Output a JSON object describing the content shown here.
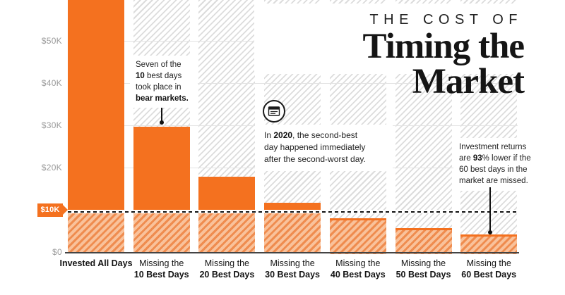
{
  "title": {
    "kicker": "THE COST OF",
    "main": "Timing the Market"
  },
  "chart_data": {
    "type": "bar",
    "title": "The Cost of Timing the Market",
    "categories": [
      [
        "Invested All Days"
      ],
      [
        "Missing the",
        "10 Best Days"
      ],
      [
        "Missing the",
        "20 Best Days"
      ],
      [
        "Missing the",
        "30 Best Days"
      ],
      [
        "Missing the",
        "40 Best Days"
      ],
      [
        "Missing the",
        "50 Best Days"
      ],
      [
        "Missing the",
        "60 Best Days"
      ]
    ],
    "values": [
      64844,
      29708,
      17826,
      11701,
      8048,
      5746,
      4205
    ],
    "ylim": [
      0,
      59500
    ],
    "grid": true,
    "legend": "none",
    "y_tick_labels": [
      {
        "label": "$50K",
        "value": 50000
      },
      {
        "label": "$40K",
        "value": 40000
      },
      {
        "label": "$30K",
        "value": 30000
      },
      {
        "label": "$20K",
        "value": 20000
      },
      {
        "label": "$0",
        "value": 0
      }
    ],
    "reference_line": {
      "label": "$10K",
      "value": 10000,
      "style": "dashed"
    }
  },
  "notes": [
    {
      "id": "note-bear",
      "segments": [
        {
          "t": "Seven of the\n",
          "b": false
        },
        {
          "t": "10",
          "b": true
        },
        {
          "t": " best days\ntook place in\n",
          "b": false
        },
        {
          "t": "bear markets.",
          "b": true
        }
      ]
    },
    {
      "id": "note-2020",
      "segments": [
        {
          "t": "In ",
          "b": false
        },
        {
          "t": "2020",
          "b": true
        },
        {
          "t": ", the second-best\nday happened immediately\nafter the second-worst day.",
          "b": false
        }
      ]
    },
    {
      "id": "note-93",
      "segments": [
        {
          "t": "Investment returns\nare ",
          "b": false
        },
        {
          "t": "93",
          "b": true
        },
        {
          "t": "% lower if the\n60 best days in the\nmarket are missed.",
          "b": false
        }
      ]
    }
  ],
  "icons": {
    "calendar": "calendar-icon"
  },
  "colors": {
    "bar_orange": "#F4711F",
    "bar_hatch_bg": "#F9C29B",
    "bar_hatch_stripe": "#EF8C4F",
    "background_hatch": "#DCDCDC",
    "ink": "#1A1A1A",
    "axis_label_gray": "#9B9B9B"
  }
}
